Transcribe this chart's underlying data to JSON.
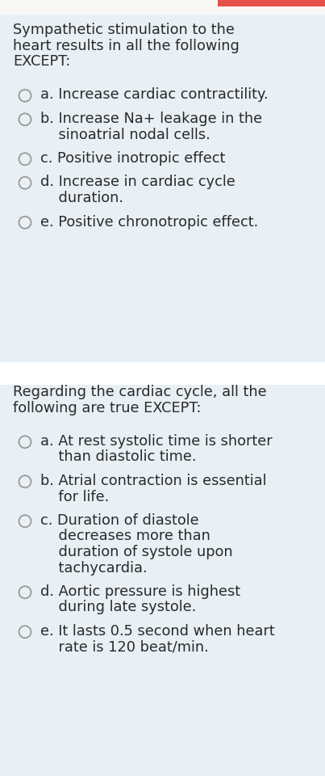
{
  "bg_color": "#e8f0f5",
  "white_gap_color": "#f5f5f5",
  "text_color": "#2a2a2a",
  "circle_edge_color": "#999999",
  "circle_face_color": "#e8f0f5",
  "red_bar_color": "#e8504a",
  "q1_title_lines": [
    "Sympathetic stimulation to the",
    "heart results in all the following",
    "EXCEPT:"
  ],
  "q1_options": [
    [
      "a. Increase cardiac contractility."
    ],
    [
      "b. Increase Na+ leakage in the",
      "    sinoatrial nodal cells."
    ],
    [
      "c. Positive inotropic effect"
    ],
    [
      "d. Increase in cardiac cycle",
      "    duration."
    ],
    [
      "e. Positive chronotropic effect."
    ]
  ],
  "q2_title_lines": [
    "Regarding the cardiac cycle, all the",
    "following are true EXCEPT:"
  ],
  "q2_options": [
    [
      "a. At rest systolic time is shorter",
      "    than diastolic time."
    ],
    [
      "b. Atrial contraction is essential",
      "    for life."
    ],
    [
      "c. Duration of diastole",
      "    decreases more than",
      "    duration of systole upon",
      "    tachycardia."
    ],
    [
      "d. Aortic pressure is highest",
      "    during late systole."
    ],
    [
      "e. It lasts 0.5 second when heart",
      "    rate is 120 beat/min."
    ]
  ],
  "title_fontsize": 12.8,
  "option_fontsize": 12.8,
  "fig_width": 4.03,
  "fig_height": 9.6,
  "dpi": 100
}
